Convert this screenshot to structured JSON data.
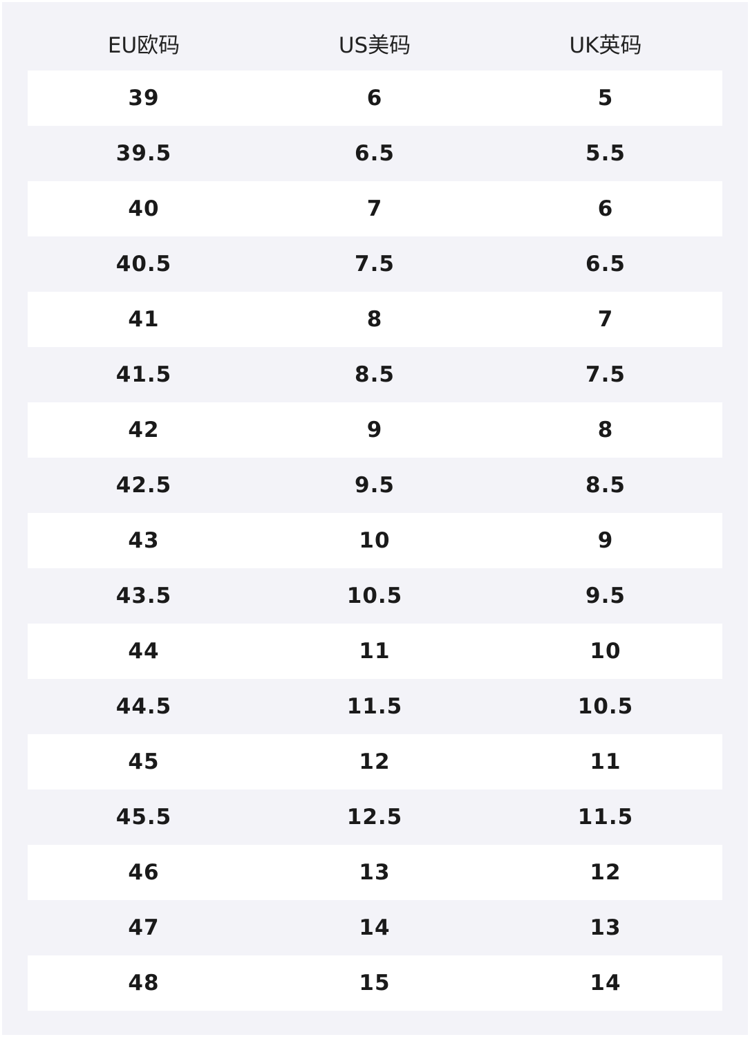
{
  "table": {
    "header": [
      "EU欧码",
      "US美码",
      "UK英码"
    ],
    "rows": [
      [
        "39",
        "6",
        "5"
      ],
      [
        "39.5",
        "6.5",
        "5.5"
      ],
      [
        "40",
        "7",
        "6"
      ],
      [
        "40.5",
        "7.5",
        "6.5"
      ],
      [
        "41",
        "8",
        "7"
      ],
      [
        "41.5",
        "8.5",
        "7.5"
      ],
      [
        "42",
        "9",
        "8"
      ],
      [
        "42.5",
        "9.5",
        "8.5"
      ],
      [
        "43",
        "10",
        "9"
      ],
      [
        "43.5",
        "10.5",
        "9.5"
      ],
      [
        "44",
        "11",
        "10"
      ],
      [
        "44.5",
        "11.5",
        "10.5"
      ],
      [
        "45",
        "12",
        "11"
      ],
      [
        "45.5",
        "12.5",
        "11.5"
      ],
      [
        "46",
        "13",
        "12"
      ],
      [
        "47",
        "14",
        "13"
      ],
      [
        "48",
        "15",
        "14"
      ]
    ]
  }
}
